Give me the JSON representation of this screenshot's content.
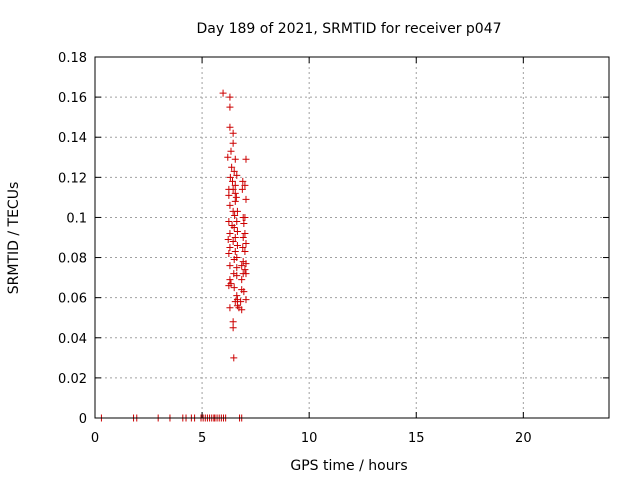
{
  "chart_data": {
    "type": "scatter",
    "title": "Day 189 of 2021, SRMTID for receiver p047",
    "xlabel": "GPS time / hours",
    "ylabel": "SRMTID / TECUs",
    "xlim": [
      0,
      24
    ],
    "ylim": [
      0,
      0.18
    ],
    "xticks": [
      0,
      5,
      10,
      15,
      20
    ],
    "xtick_labels": [
      "0",
      "5",
      "10",
      "15",
      "20"
    ],
    "yticks": [
      0,
      0.02,
      0.04,
      0.06,
      0.08,
      0.1,
      0.12,
      0.14,
      0.16,
      0.18
    ],
    "ytick_labels": [
      "0",
      "0.02",
      "0.04",
      "0.06",
      "0.08",
      "0.1",
      "0.12",
      "0.14",
      "0.16",
      "0.18"
    ],
    "grid": true,
    "marker": "+",
    "color": "#cc0000",
    "series": [
      {
        "name": "SRMTID",
        "points": [
          [
            0.3,
            0
          ],
          [
            1.8,
            0
          ],
          [
            1.95,
            0
          ],
          [
            2.95,
            0
          ],
          [
            3.5,
            0
          ],
          [
            4.1,
            0
          ],
          [
            4.25,
            0
          ],
          [
            4.5,
            0
          ],
          [
            4.65,
            0
          ],
          [
            4.95,
            0
          ],
          [
            5.05,
            0
          ],
          [
            5.15,
            0
          ],
          [
            5.25,
            0
          ],
          [
            5.35,
            0
          ],
          [
            5.45,
            0
          ],
          [
            5.55,
            0
          ],
          [
            5.6,
            0
          ],
          [
            5.7,
            0
          ],
          [
            5.8,
            0
          ],
          [
            5.9,
            0
          ],
          [
            6.0,
            0
          ],
          [
            6.1,
            0
          ],
          [
            6.75,
            0
          ],
          [
            6.85,
            0
          ],
          [
            5.98,
            0.162
          ],
          [
            6.3,
            0.16
          ],
          [
            6.3,
            0.155
          ],
          [
            6.3,
            0.145
          ],
          [
            6.45,
            0.142
          ],
          [
            6.45,
            0.137
          ],
          [
            6.35,
            0.133
          ],
          [
            6.2,
            0.13
          ],
          [
            6.55,
            0.129
          ],
          [
            7.05,
            0.129
          ],
          [
            6.38,
            0.125
          ],
          [
            6.5,
            0.123
          ],
          [
            6.62,
            0.121
          ],
          [
            6.32,
            0.12
          ],
          [
            6.42,
            0.118
          ],
          [
            6.9,
            0.118
          ],
          [
            6.55,
            0.116
          ],
          [
            7.0,
            0.116
          ],
          [
            6.25,
            0.114
          ],
          [
            6.45,
            0.114
          ],
          [
            6.88,
            0.114
          ],
          [
            6.55,
            0.112
          ],
          [
            6.25,
            0.111
          ],
          [
            6.6,
            0.11
          ],
          [
            6.55,
            0.108
          ],
          [
            7.05,
            0.109
          ],
          [
            6.3,
            0.106
          ],
          [
            6.45,
            0.103
          ],
          [
            6.65,
            0.103
          ],
          [
            6.52,
            0.101
          ],
          [
            6.92,
            0.1
          ],
          [
            7.0,
            0.1
          ],
          [
            6.62,
            0.098
          ],
          [
            6.25,
            0.098
          ],
          [
            6.95,
            0.097
          ],
          [
            6.4,
            0.096
          ],
          [
            6.5,
            0.095
          ],
          [
            6.65,
            0.093
          ],
          [
            6.3,
            0.092
          ],
          [
            7.0,
            0.092
          ],
          [
            6.55,
            0.09
          ],
          [
            6.92,
            0.09
          ],
          [
            6.22,
            0.089
          ],
          [
            6.45,
            0.088
          ],
          [
            7.05,
            0.087
          ],
          [
            6.65,
            0.086
          ],
          [
            6.3,
            0.085
          ],
          [
            6.9,
            0.085
          ],
          [
            6.55,
            0.083
          ],
          [
            6.25,
            0.082
          ],
          [
            7.0,
            0.083
          ],
          [
            6.62,
            0.08
          ],
          [
            6.5,
            0.079
          ],
          [
            6.92,
            0.078
          ],
          [
            7.05,
            0.077
          ],
          [
            6.3,
            0.076
          ],
          [
            6.85,
            0.076
          ],
          [
            6.62,
            0.075
          ],
          [
            7.0,
            0.074
          ],
          [
            6.48,
            0.072
          ],
          [
            6.92,
            0.072
          ],
          [
            7.05,
            0.072
          ],
          [
            6.62,
            0.071
          ],
          [
            6.3,
            0.069
          ],
          [
            6.85,
            0.069
          ],
          [
            6.35,
            0.067
          ],
          [
            6.25,
            0.066
          ],
          [
            6.5,
            0.065
          ],
          [
            6.85,
            0.064
          ],
          [
            6.95,
            0.063
          ],
          [
            6.62,
            0.061
          ],
          [
            6.65,
            0.059
          ],
          [
            6.55,
            0.058
          ],
          [
            7.05,
            0.059
          ],
          [
            6.8,
            0.058
          ],
          [
            6.65,
            0.056
          ],
          [
            6.3,
            0.055
          ],
          [
            6.72,
            0.055
          ],
          [
            6.85,
            0.054
          ],
          [
            6.45,
            0.048
          ],
          [
            6.45,
            0.045
          ],
          [
            6.48,
            0.03
          ]
        ]
      }
    ]
  }
}
